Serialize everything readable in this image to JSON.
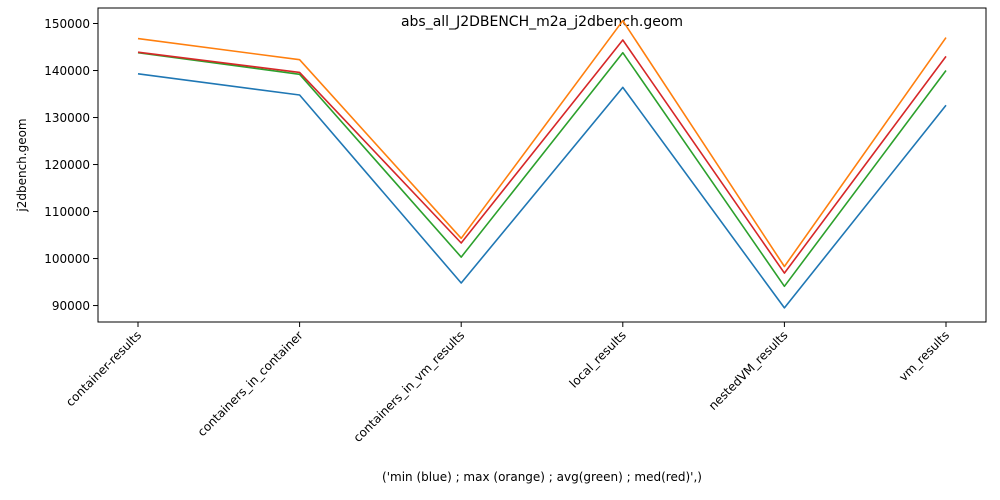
{
  "chart_data": {
    "type": "line",
    "title": "abs_all_J2DBENCH_m2a_j2dbench.geom",
    "xlabel": "('min (blue) ; max (orange) ; avg(green) ; med(red)',)",
    "ylabel": "j2dbench.geom",
    "categories": [
      "container-results",
      "containers_in_container",
      "containers_in_vm_results",
      "local_results",
      "nestedVM_results",
      "vm_results"
    ],
    "yticks": [
      90000,
      100000,
      110000,
      120000,
      130000,
      140000,
      150000
    ],
    "ylim": [
      86500,
      153300
    ],
    "grid": false,
    "series": [
      {
        "color": "#1f77b4",
        "values": [
          139300,
          134800,
          94800,
          136400,
          89500,
          132600
        ]
      },
      {
        "color": "#ff7f0e",
        "values": [
          146800,
          142300,
          104300,
          150600,
          98300,
          147000
        ]
      },
      {
        "color": "#2ca02c",
        "values": [
          143800,
          139200,
          100300,
          143800,
          94100,
          140000
        ]
      },
      {
        "color": "#d62728",
        "values": [
          143900,
          139600,
          103300,
          146500,
          96900,
          143000
        ]
      }
    ]
  }
}
